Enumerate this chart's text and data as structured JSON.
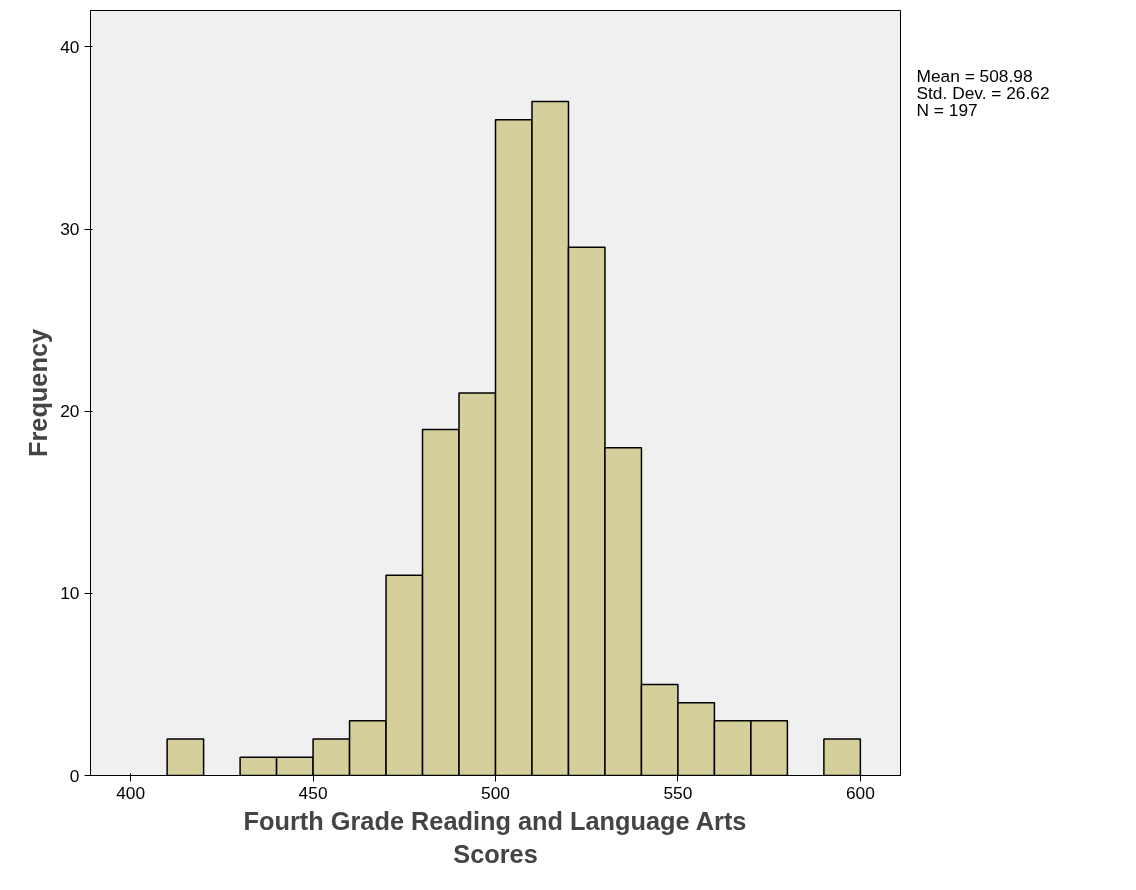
{
  "chart_data": {
    "type": "histogram",
    "xlabel": "Fourth Grade Reading and Language Arts Scores",
    "ylabel": "Frequency",
    "bins": [
      410,
      420,
      430,
      440,
      450,
      460,
      470,
      480,
      490,
      500,
      510,
      520,
      530,
      540,
      550,
      560,
      570,
      580,
      590,
      600
    ],
    "values": [
      2,
      0,
      1,
      1,
      2,
      3,
      11,
      19,
      21,
      36,
      37,
      29,
      18,
      5,
      4,
      3,
      3,
      0,
      2
    ],
    "color": "#d4cf9b",
    "xlim": [
      389,
      611
    ],
    "ylim": [
      0,
      42
    ],
    "xticks": [
      400,
      450,
      500,
      550,
      600
    ],
    "yticks": [
      0,
      10,
      20,
      30,
      40
    ],
    "grid": false,
    "annotations": [
      "Mean = 508.98",
      "Std. Dev. = 26.62",
      "N = 197"
    ]
  }
}
